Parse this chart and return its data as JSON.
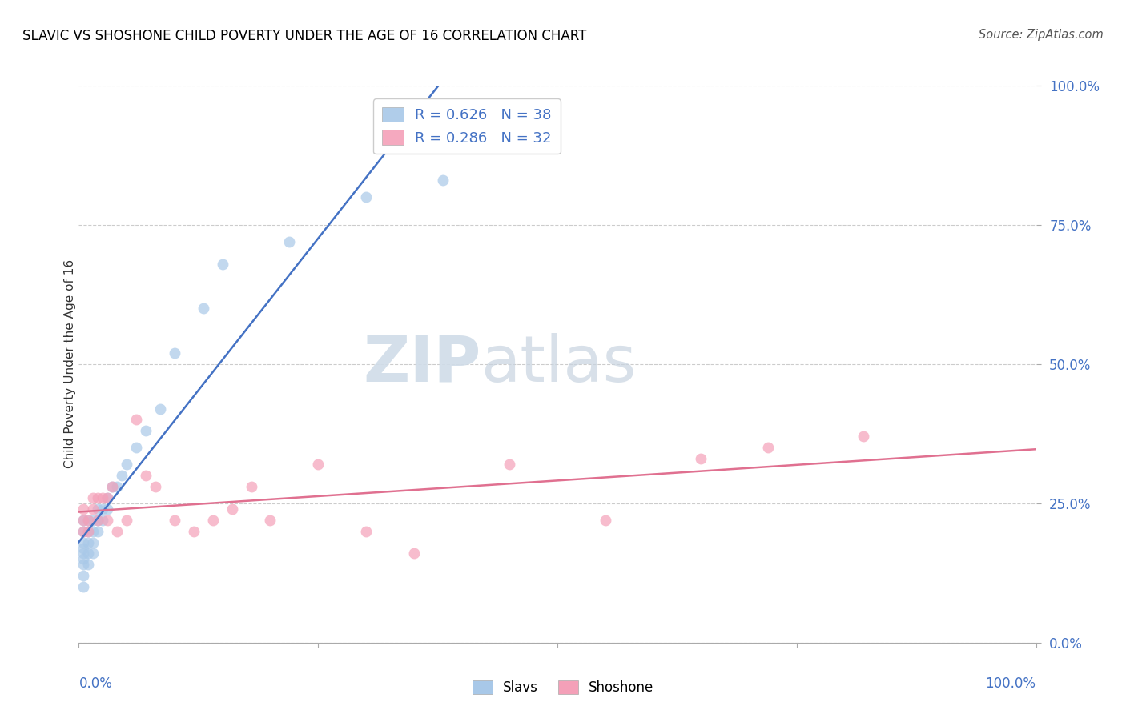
{
  "title": "SLAVIC VS SHOSHONE CHILD POVERTY UNDER THE AGE OF 16 CORRELATION CHART",
  "source": "Source: ZipAtlas.com",
  "ylabel": "Child Poverty Under the Age of 16",
  "ytick_labels": [
    "0.0%",
    "25.0%",
    "50.0%",
    "75.0%",
    "100.0%"
  ],
  "ytick_values": [
    0,
    25,
    50,
    75,
    100
  ],
  "xtick_labels": [
    "0.0%",
    "100.0%"
  ],
  "xtick_values": [
    0,
    100
  ],
  "xlim": [
    0,
    100
  ],
  "ylim": [
    0,
    100
  ],
  "slavs_R": 0.626,
  "slavs_N": 38,
  "shoshone_R": 0.286,
  "shoshone_N": 32,
  "slavs_color": "#a8c8e8",
  "shoshone_color": "#f4a0b8",
  "slavs_line_color": "#4472c4",
  "shoshone_line_color": "#e07090",
  "tick_color": "#4472c4",
  "watermark_zip": "ZIP",
  "watermark_atlas": "atlas",
  "slavs_x": [
    0.5,
    0.5,
    0.5,
    0.5,
    0.5,
    0.5,
    0.5,
    0.5,
    0.5,
    1.0,
    1.0,
    1.0,
    1.0,
    1.0,
    1.5,
    1.5,
    1.5,
    1.5,
    2.0,
    2.0,
    2.0,
    2.5,
    2.5,
    3.0,
    3.0,
    3.5,
    4.0,
    4.5,
    5.0,
    6.0,
    7.0,
    8.5,
    10.0,
    13.0,
    15.0,
    22.0,
    30.0,
    38.0
  ],
  "slavs_y": [
    10,
    12,
    14,
    15,
    16,
    17,
    18,
    20,
    22,
    14,
    16,
    18,
    20,
    22,
    16,
    18,
    20,
    22,
    20,
    22,
    24,
    22,
    24,
    24,
    26,
    28,
    28,
    30,
    32,
    35,
    38,
    42,
    52,
    60,
    68,
    72,
    80,
    83
  ],
  "shoshone_x": [
    0.5,
    0.5,
    0.5,
    1.0,
    1.0,
    1.5,
    1.5,
    2.0,
    2.0,
    2.5,
    3.0,
    3.0,
    3.5,
    4.0,
    5.0,
    6.0,
    7.0,
    8.0,
    10.0,
    12.0,
    14.0,
    16.0,
    18.0,
    20.0,
    25.0,
    30.0,
    35.0,
    45.0,
    55.0,
    65.0,
    72.0,
    82.0
  ],
  "shoshone_y": [
    20,
    22,
    24,
    20,
    22,
    24,
    26,
    22,
    26,
    26,
    22,
    26,
    28,
    20,
    22,
    40,
    30,
    28,
    22,
    20,
    22,
    24,
    28,
    22,
    32,
    20,
    16,
    32,
    22,
    33,
    35,
    37
  ]
}
